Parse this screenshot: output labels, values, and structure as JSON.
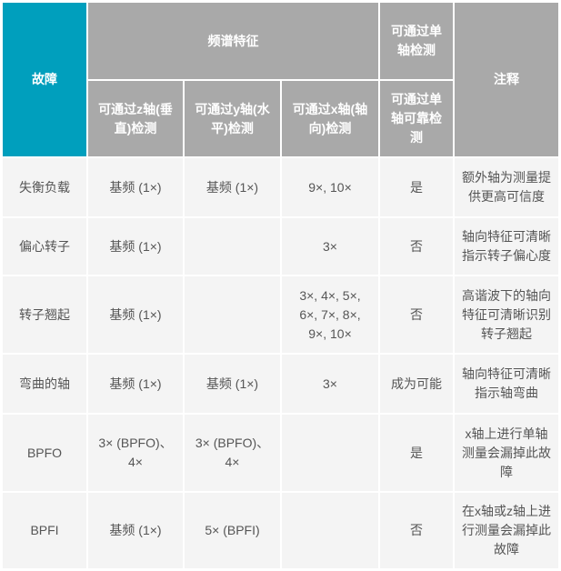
{
  "header": {
    "fault": "故障",
    "spectral": "频谱特征",
    "single_axis_detect": "可通过单轴检测",
    "notes": "注释",
    "z_axis": "可通过z轴(垂直)检测",
    "y_axis": "可通过y轴(水平)检测",
    "x_axis": "可通过x轴(轴向)检测",
    "single_axis_reliable": "可通过单轴可靠检测"
  },
  "accent_color": "#009fbd",
  "header_color": "#a9a9a9",
  "rows": [
    {
      "fault": "失衡负载",
      "z": "基频 (1×)",
      "y": "基频 (1×)",
      "x": "9×, 10×",
      "single": "是",
      "note": "额外轴为测量提供更高可信度"
    },
    {
      "fault": "偏心转子",
      "z": "基频 (1×)",
      "y": "",
      "x": "3×",
      "single": "否",
      "note": "轴向特征可清晰指示转子偏心度"
    },
    {
      "fault": "转子翘起",
      "z": "基频 (1×)",
      "y": "",
      "x": "3×, 4×, 5×, 6×, 7×, 8×, 9×, 10×",
      "single": "否",
      "note": "高谐波下的轴向特征可清晰识别转子翘起"
    },
    {
      "fault": "弯曲的轴",
      "z": "基频 (1×)",
      "y": "基频 (1×)",
      "x": "3×",
      "single": "成为可能",
      "note": "轴向特征可清晰指示轴弯曲"
    },
    {
      "fault": "BPFO",
      "z": "3× (BPFO)、4×",
      "y": "3× (BPFO)、4×",
      "x": "",
      "single": "是",
      "note": "x轴上进行单轴测量会漏掉此故障"
    },
    {
      "fault": "BPFI",
      "z": "基频 (1×)",
      "y": "5× (BPFI)",
      "x": "",
      "single": "否",
      "note": "在x轴或z轴上进行测量会漏掉此故障"
    }
  ]
}
